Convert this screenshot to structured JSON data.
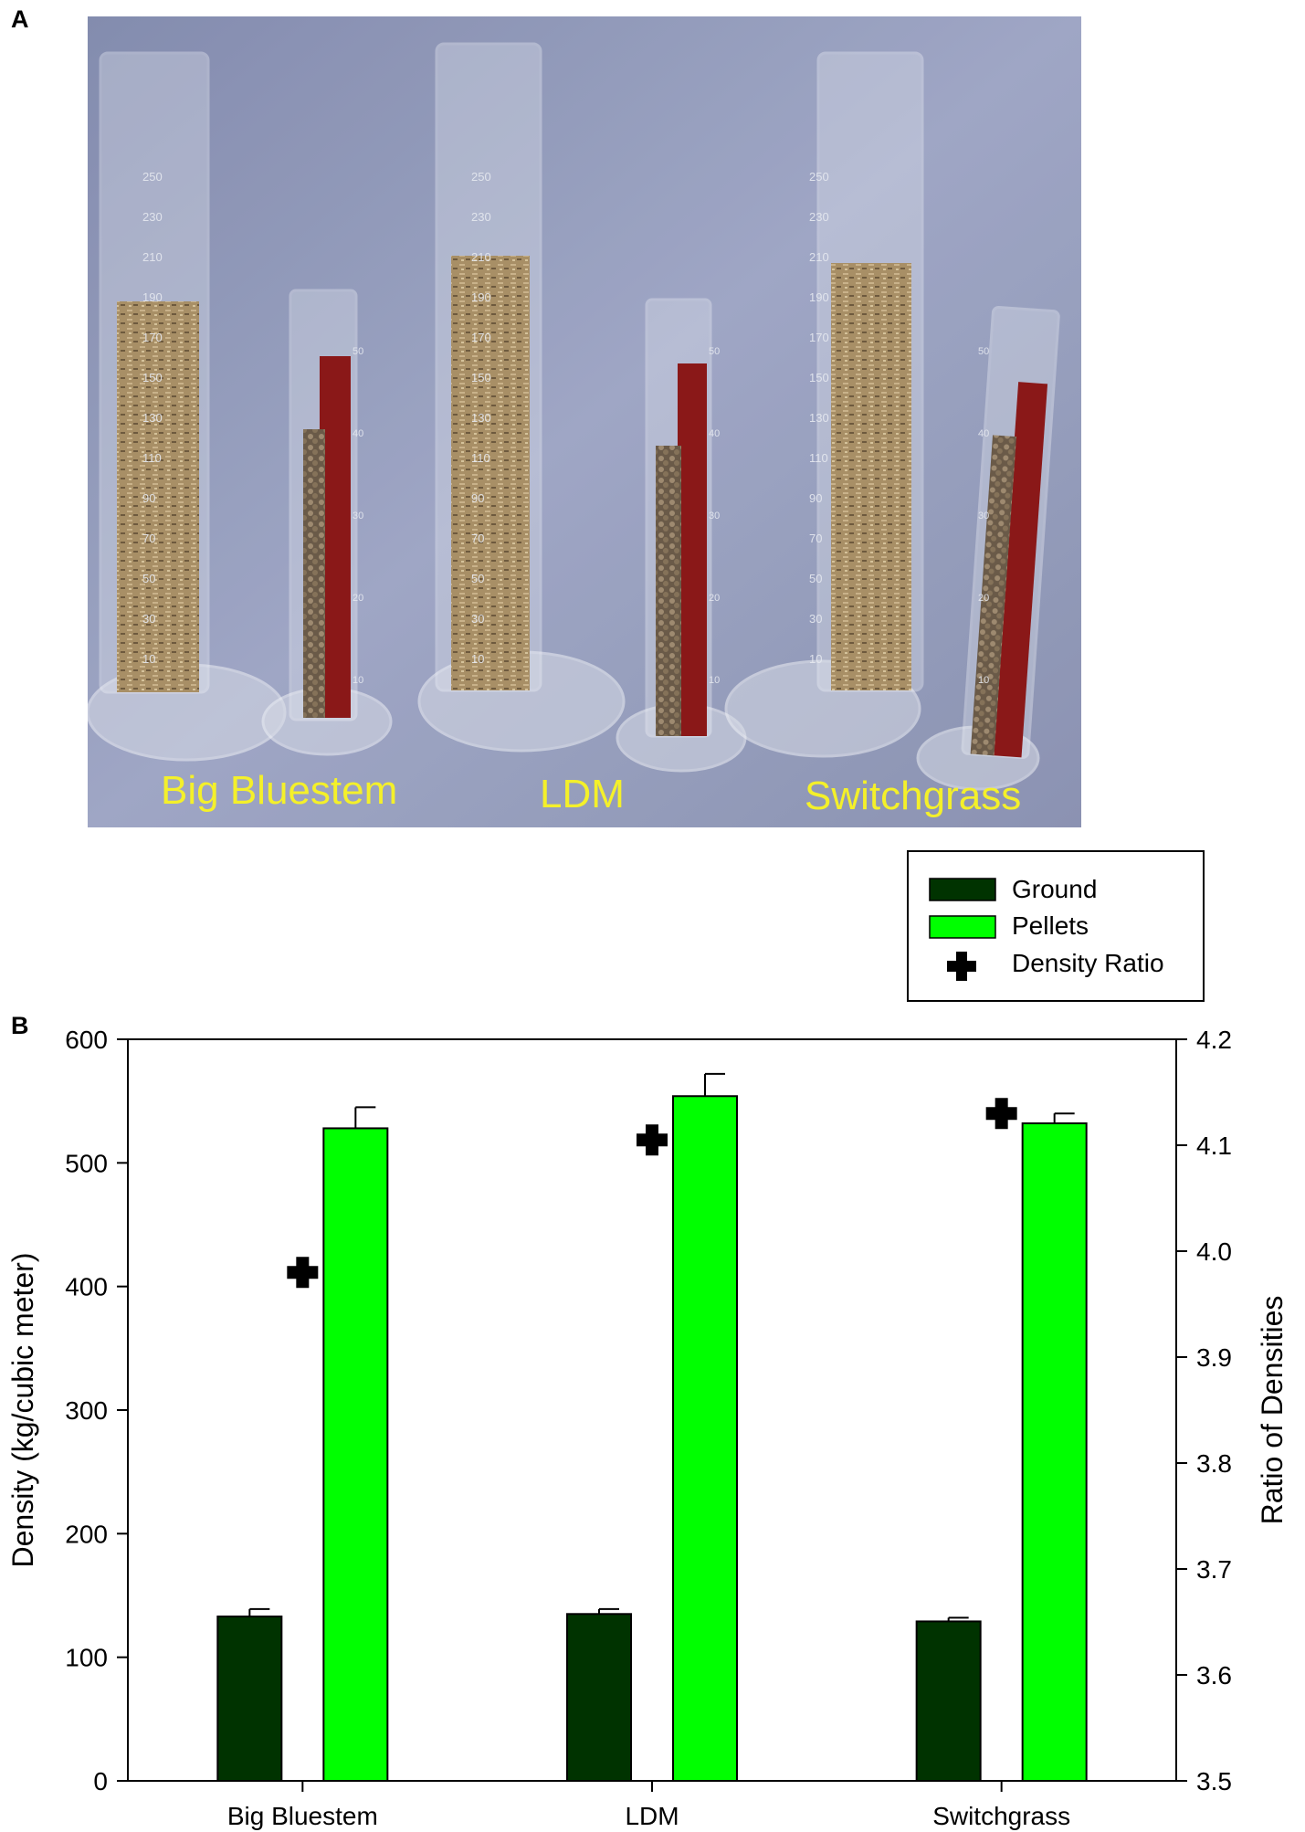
{
  "panel_a": {
    "label": "A",
    "photo_labels": [
      "Big Bluestem",
      "LDM",
      "Switchgrass"
    ],
    "label_color": "#f4f02a",
    "background_color": "#8b93b4",
    "cylinder_markings": {
      "big_cylinder": [
        "250",
        "230",
        "210",
        "190",
        "170",
        "150",
        "130",
        "110",
        "90",
        "70",
        "50",
        "30",
        "10"
      ],
      "small_cylinder": [
        "50",
        "40",
        "30",
        "20",
        "10"
      ]
    }
  },
  "panel_b": {
    "label": "B"
  },
  "chart_data": {
    "type": "bar",
    "categories": [
      "Big Bluestem",
      "LDM",
      "Switchgrass"
    ],
    "series": [
      {
        "name": "Ground",
        "kind": "bar",
        "axis": "left",
        "color": "#003300",
        "values": [
          133,
          135,
          129
        ],
        "errors": [
          6,
          4,
          3
        ]
      },
      {
        "name": "Pellets",
        "kind": "bar",
        "axis": "left",
        "color": "#00ff00",
        "values": [
          528,
          554,
          532
        ],
        "errors": [
          17,
          18,
          8
        ]
      },
      {
        "name": "Density Ratio",
        "kind": "marker",
        "axis": "right",
        "color": "#000000",
        "values": [
          3.98,
          4.105,
          4.13
        ]
      }
    ],
    "ylabel": "Density (kg/cubic meter)",
    "ylabel_right": "Ratio of Densities",
    "ylim": [
      0,
      600
    ],
    "ylim_right": [
      3.5,
      4.2
    ],
    "yticks": [
      "0",
      "100",
      "200",
      "300",
      "400",
      "500",
      "600"
    ],
    "yticks_right": [
      "3.5",
      "3.6",
      "3.7",
      "3.8",
      "3.9",
      "4.0",
      "4.1",
      "4.2"
    ],
    "legend": {
      "placement": "top-right, above plot",
      "entries": [
        "Ground",
        "Pellets",
        "Density Ratio"
      ]
    },
    "grid": false
  }
}
